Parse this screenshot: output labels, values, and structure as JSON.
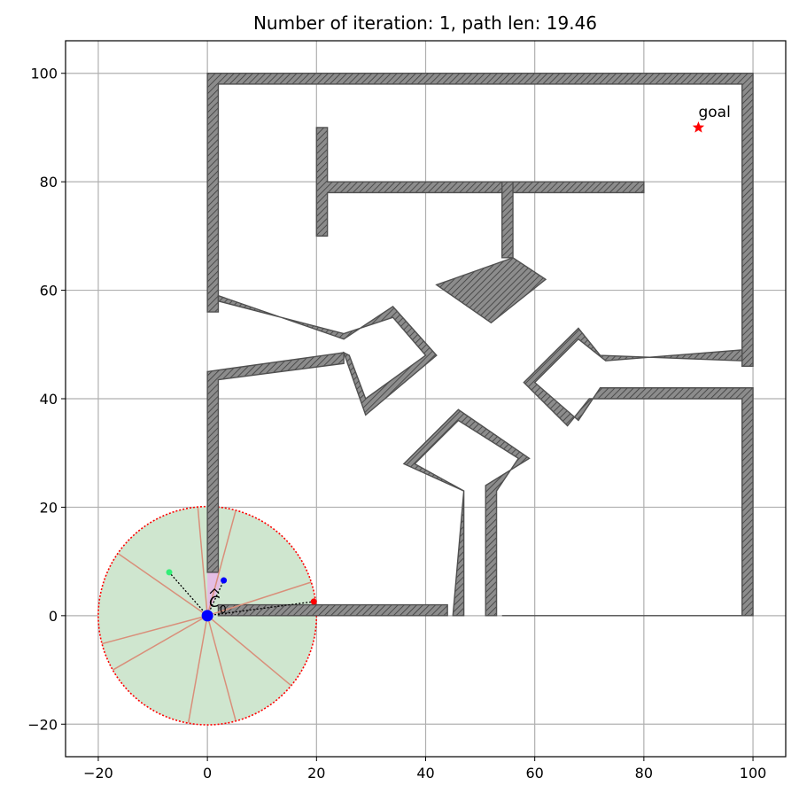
{
  "chart_data": {
    "type": "scatter",
    "title": "Number of iteration: 1, path len: 19.46",
    "xlabel": "",
    "ylabel": "",
    "xlim": [
      -26,
      106
    ],
    "ylim": [
      -26,
      106
    ],
    "xticks": [
      -20,
      0,
      20,
      40,
      60,
      80,
      100
    ],
    "yticks": [
      -20,
      0,
      20,
      40,
      60,
      80,
      100
    ],
    "grid": true,
    "colors": {
      "obstacle_fill": "#8c8c8c",
      "obstacle_edge": "#505050",
      "sensor_fill": "#cfe6cf",
      "sensor_edge": "#ff0000",
      "ray": "#d98f7a",
      "robot": "#0000ff",
      "goal": "#ff0000",
      "candidate_green": "#33ee77",
      "candidate_red": "#ff0000",
      "candidate_blue": "#0000ff",
      "small_region": "#e8b4e8"
    },
    "obstacles": [
      [
        [
          0,
          100
        ],
        [
          100,
          100
        ],
        [
          100,
          46
        ],
        [
          98,
          46
        ],
        [
          98,
          98
        ],
        [
          2,
          98
        ],
        [
          2,
          56
        ],
        [
          0,
          56
        ]
      ],
      [
        [
          0,
          45
        ],
        [
          25,
          48.5
        ],
        [
          25,
          46.5
        ],
        [
          2,
          43.5
        ],
        [
          2,
          8
        ],
        [
          0,
          8
        ]
      ],
      [
        [
          20,
          90
        ],
        [
          22,
          90
        ],
        [
          22,
          80
        ],
        [
          80,
          80
        ],
        [
          80,
          78
        ],
        [
          22,
          78
        ],
        [
          22,
          70
        ],
        [
          20,
          70
        ]
      ],
      [
        [
          54,
          80
        ],
        [
          56,
          80
        ],
        [
          56,
          66
        ],
        [
          54,
          66
        ]
      ],
      [
        [
          42,
          61
        ],
        [
          56,
          66
        ],
        [
          62,
          62
        ],
        [
          52,
          54
        ]
      ],
      [
        [
          2,
          59
        ],
        [
          25,
          51
        ],
        [
          34,
          57
        ],
        [
          42,
          48
        ],
        [
          29,
          37
        ],
        [
          25,
          48.5
        ],
        [
          26,
          48
        ],
        [
          29,
          40
        ],
        [
          40,
          48
        ],
        [
          34,
          55
        ],
        [
          25,
          52
        ],
        [
          2,
          58
        ]
      ],
      [
        [
          36,
          28
        ],
        [
          46,
          38
        ],
        [
          59,
          29
        ],
        [
          51,
          24
        ],
        [
          51,
          0
        ],
        [
          53,
          0
        ],
        [
          53,
          23
        ],
        [
          57,
          29
        ],
        [
          46,
          36
        ],
        [
          38,
          28
        ],
        [
          47,
          23
        ],
        [
          45,
          0
        ],
        [
          47,
          0
        ],
        [
          47,
          23
        ]
      ],
      [
        [
          2,
          0
        ],
        [
          44,
          0
        ],
        [
          44,
          2
        ],
        [
          2,
          2
        ]
      ],
      [
        [
          54,
          0
        ],
        [
          98,
          0
        ],
        [
          98,
          40
        ],
        [
          70,
          40
        ],
        [
          66,
          35
        ],
        [
          58,
          43
        ],
        [
          68,
          53
        ],
        [
          72,
          48
        ],
        [
          98,
          47
        ],
        [
          98,
          49
        ],
        [
          73,
          47
        ],
        [
          68,
          51
        ],
        [
          60,
          43
        ],
        [
          68,
          36
        ],
        [
          72,
          42
        ],
        [
          100,
          42
        ],
        [
          100,
          0
        ]
      ]
    ],
    "sensor": {
      "center": [
        0,
        0
      ],
      "radius": 20
    },
    "rays_deg": [
      -100,
      -75,
      -40,
      18,
      75,
      95,
      145,
      195,
      210
    ],
    "robot": {
      "x": 0,
      "y": 0,
      "label": "C_0"
    },
    "goal": {
      "x": 90,
      "y": 90,
      "label": "goal"
    },
    "candidates": [
      {
        "x": -7,
        "y": 8,
        "color": "candidate_green"
      },
      {
        "x": 3,
        "y": 6.5,
        "color": "candidate_blue"
      },
      {
        "x": 19.5,
        "y": 2.6,
        "color": "candidate_red"
      }
    ]
  }
}
